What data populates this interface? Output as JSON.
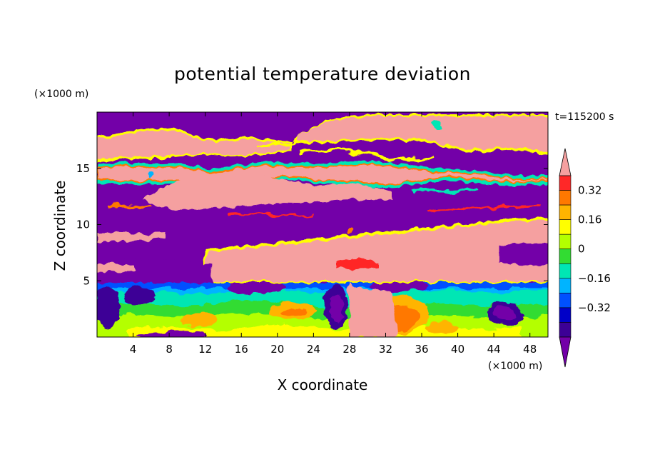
{
  "chart_data": {
    "type": "heatmap",
    "title": "potential temperature deviation",
    "xlabel": "X coordinate",
    "ylabel": "Z coordinate",
    "x_unit": "(×1000 m)",
    "y_unit": "(×1000 m)",
    "time_label": "t=115200 s",
    "xlim": [
      0,
      50
    ],
    "ylim": [
      0,
      20
    ],
    "x_ticks": [
      4,
      8,
      12,
      16,
      20,
      24,
      28,
      32,
      36,
      40,
      44,
      48
    ],
    "y_ticks": [
      5,
      10,
      15
    ],
    "colorbar": {
      "levels": [
        -0.48,
        -0.4,
        -0.32,
        -0.24,
        -0.16,
        -0.08,
        0,
        0.08,
        0.16,
        0.24,
        0.32,
        0.4
      ],
      "tick_labels": [
        "0.32",
        "0.16",
        "0",
        "−0.16",
        "−0.32"
      ],
      "tick_values": [
        0.32,
        0.16,
        0,
        -0.16,
        -0.32
      ],
      "colors": [
        "#7300a8",
        "#3c0096",
        "#0000c8",
        "#0050ff",
        "#00b4ff",
        "#00e6b4",
        "#32dc32",
        "#b4ff00",
        "#ffff00",
        "#ffb400",
        "#ff7800",
        "#ff2828",
        "#f5a0a0"
      ],
      "extend": "both"
    },
    "layers": [
      {
        "range": "above 0.4",
        "color": "#f5a0a0",
        "regions": [
          "upper band z≈16–19",
          "band z≈13–15",
          "mid layer z≈5–9.5 (x 12–50)",
          "surface column x≈29–31"
        ]
      },
      {
        "range": "below -0.48",
        "color": "#7300a8",
        "regions": [
          "top z≈19–20",
          "z≈15–16.5",
          "z≈9–13",
          "near-surface eddies"
        ]
      },
      {
        "range": "-0.16 to 0.32",
        "color": "mixed",
        "regions": [
          "boundary layer z≈0–5 turbulent cells"
        ]
      }
    ]
  }
}
